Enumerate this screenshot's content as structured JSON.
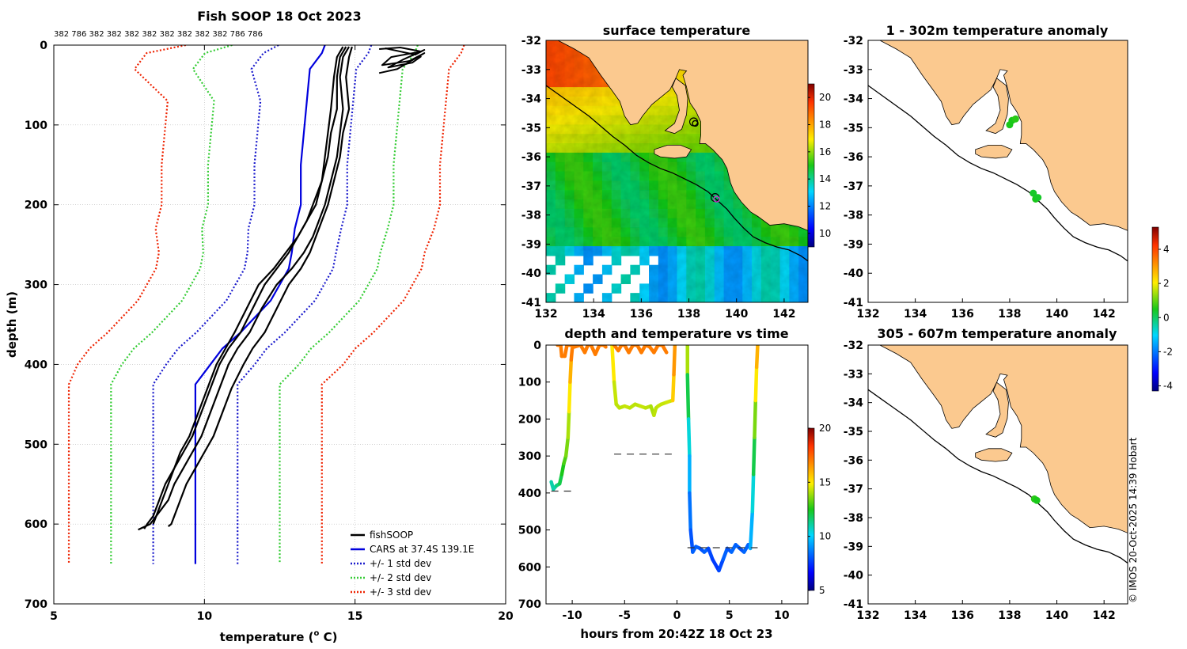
{
  "chart_data": [
    {
      "id": "profile",
      "type": "line",
      "title": "Fish SOOP 18 Oct 2023",
      "top_annotation": "382 786 382 382 382 382 382 382 382 382 786 786",
      "xlabel": "temperature (",
      "xlabel_sup": "o",
      "xlabel_end": " C)",
      "ylabel": "depth (m)",
      "xlim": [
        5,
        20
      ],
      "ylim": [
        700,
        0
      ],
      "xticks": [
        5,
        10,
        15,
        20
      ],
      "yticks": [
        0,
        100,
        200,
        300,
        400,
        500,
        600,
        700
      ],
      "grid": true,
      "legend": [
        {
          "label": "fishSOOP",
          "color": "#000000",
          "dash": "solid"
        },
        {
          "label": "CARS at 37.4S 139.1E",
          "color": "#0000dd",
          "dash": "solid"
        },
        {
          "label": "+/- 1 std dev",
          "color": "#1a1acc",
          "dash": "dot"
        },
        {
          "label": "+/- 2 std dev",
          "color": "#33cc33",
          "dash": "dot"
        },
        {
          "label": "+/- 3 std dev",
          "color": "#ee2200",
          "dash": "dot"
        }
      ],
      "cars_mean": {
        "x": [
          14.0,
          13.9,
          13.5,
          13.4,
          13.3,
          13.2,
          13.2,
          13.0,
          12.9,
          12.8,
          12.5,
          12.2,
          11.7,
          11.2,
          10.6,
          10.2,
          9.7,
          9.7,
          9.7
        ],
        "y": [
          0,
          10,
          30,
          70,
          110,
          150,
          200,
          230,
          260,
          280,
          300,
          320,
          340,
          360,
          380,
          400,
          425,
          600,
          650
        ]
      },
      "std_dev": 1.4,
      "std_dev_extra_shallow": [
        0,
        0.6,
        0.4,
        0
      ],
      "fishsoop_profiles": [
        {
          "x": [
            14.8,
            14.6,
            14.5,
            14.6,
            14.5,
            14.4,
            14.2,
            14.0,
            13.8,
            13.6,
            13.3,
            12.9,
            12.4,
            11.9,
            11.5,
            11.1,
            10.8,
            10.5,
            10.2,
            9.9,
            9.6,
            9.3,
            9.0,
            8.8,
            8.4,
            8.2,
            7.8
          ],
          "y": [
            2,
            15,
            40,
            80,
            110,
            140,
            170,
            200,
            220,
            240,
            260,
            280,
            300,
            330,
            360,
            380,
            400,
            430,
            460,
            490,
            510,
            530,
            550,
            570,
            590,
            600,
            607
          ]
        },
        {
          "x": [
            14.9,
            14.8,
            14.7,
            14.8,
            14.6,
            14.5,
            14.3,
            14.1,
            13.9,
            13.7,
            13.5,
            13.2,
            12.8,
            12.4,
            12.0,
            11.6,
            11.3,
            10.9,
            10.6,
            10.3,
            10.0,
            9.7,
            9.4,
            9.2,
            9.0,
            8.9,
            8.8
          ],
          "y": [
            2,
            15,
            40,
            80,
            110,
            140,
            170,
            200,
            220,
            240,
            260,
            280,
            300,
            330,
            360,
            380,
            400,
            430,
            460,
            490,
            510,
            530,
            550,
            570,
            590,
            600,
            603
          ]
        },
        {
          "x": [
            14.6,
            14.4,
            14.3,
            14.2,
            14.1,
            14.0,
            13.9,
            13.7,
            13.4,
            13.1,
            12.8,
            12.4,
            12.0,
            11.6,
            11.2,
            10.8,
            10.5,
            10.2,
            9.9,
            9.6,
            9.3,
            9.0,
            8.8,
            8.6,
            8.4,
            8.3
          ],
          "y": [
            2,
            15,
            40,
            80,
            110,
            140,
            170,
            200,
            220,
            240,
            260,
            280,
            300,
            330,
            360,
            380,
            400,
            430,
            460,
            490,
            510,
            530,
            550,
            570,
            590,
            600
          ]
        },
        {
          "x": [
            14.7,
            14.5,
            14.4,
            14.4,
            14.2,
            14.1,
            13.9,
            13.6,
            13.4,
            13.1,
            12.7,
            12.3,
            11.8,
            11.4,
            11.0,
            10.7,
            10.4,
            10.1,
            9.8,
            9.5,
            9.2,
            9.0,
            8.7,
            8.5,
            8.3,
            8.1,
            8.0
          ],
          "y": [
            2,
            15,
            40,
            80,
            110,
            140,
            170,
            200,
            220,
            240,
            260,
            280,
            300,
            330,
            360,
            380,
            400,
            430,
            460,
            490,
            510,
            530,
            550,
            570,
            590,
            600,
            606
          ]
        }
      ],
      "surface_squiggles": [
        {
          "x": [
            15.8,
            16.5,
            17.2,
            16.2,
            15.9,
            16.8,
            17.3,
            16.4,
            15.8
          ],
          "y": [
            5,
            3,
            8,
            15,
            25,
            20,
            10,
            30,
            35
          ]
        },
        {
          "x": [
            16.0,
            17.0,
            17.3,
            16.6,
            16.1,
            16.9,
            17.2
          ],
          "y": [
            4,
            12,
            6,
            18,
            28,
            22,
            14
          ]
        }
      ]
    },
    {
      "id": "surface_map",
      "type": "heatmap",
      "title": "surface temperature",
      "xlim": [
        132,
        143
      ],
      "ylim": [
        -41,
        -32
      ],
      "xticks": [
        132,
        134,
        136,
        138,
        140,
        142
      ],
      "yticks": [
        -32,
        -33,
        -34,
        -35,
        -36,
        -37,
        -38,
        -39,
        -40,
        -41
      ],
      "colorbar": {
        "min": 9,
        "max": 21,
        "ticks": [
          10,
          12,
          14,
          16,
          18,
          20
        ]
      },
      "ship_positions": [
        {
          "lon": 138.2,
          "lat": -34.8
        },
        {
          "lon": 139.1,
          "lat": -37.4
        }
      ]
    },
    {
      "id": "depth_time",
      "type": "scatter",
      "title": "depth and temperature vs time",
      "xlabel": "hours from 20:42Z 18 Oct 23",
      "xlim": [
        -12.5,
        12.5
      ],
      "ylim": [
        700,
        0
      ],
      "xticks": [
        -10,
        -5,
        0,
        5,
        10
      ],
      "yticks": [
        0,
        100,
        200,
        300,
        400,
        500,
        600,
        700
      ],
      "colorbar": {
        "min": 5,
        "max": 20,
        "ticks": [
          5,
          10,
          15,
          20
        ]
      },
      "segments": [
        {
          "t": [
            -12.0,
            -11.8,
            -11.5,
            -11.2,
            -11.0,
            -10.8,
            -10.6,
            -10.4,
            -10.3,
            -10.2,
            -10.1,
            -10.0
          ],
          "d": [
            370,
            390,
            380,
            375,
            350,
            320,
            300,
            250,
            180,
            100,
            40,
            10
          ],
          "temp": [
            11,
            11,
            11,
            11.5,
            12,
            12.5,
            13,
            13.5,
            14,
            15,
            16,
            17
          ]
        },
        {
          "t": [
            -11.4,
            -11.1,
            -11.0,
            -10.7,
            -10.5,
            -10.2,
            -9.8,
            -9.2,
            -8.8,
            -8.5,
            -8.2,
            -7.8,
            -7.4,
            -7.0,
            -6.8
          ],
          "d": [
            0,
            0,
            30,
            30,
            0,
            0,
            5,
            0,
            20,
            0,
            0,
            25,
            0,
            0,
            5
          ],
          "temp": [
            17,
            17,
            17,
            17,
            17,
            17,
            17,
            17,
            17,
            17,
            17,
            17,
            17,
            17,
            17
          ]
        },
        {
          "t": [
            -6.2,
            -6.0,
            -5.8,
            -5.5,
            -5.0,
            -4.5,
            -4.0,
            -3.5,
            -3.0,
            -2.5,
            -2.2,
            -2.0,
            -1.8,
            -1.5,
            -1.0,
            -0.5
          ],
          "d": [
            0,
            100,
            160,
            170,
            165,
            170,
            160,
            165,
            170,
            165,
            190,
            170,
            165,
            160,
            155,
            150
          ],
          "temp": [
            16.5,
            15,
            14.3,
            14.2,
            14.2,
            14.3,
            14.2,
            14.2,
            14.3,
            14.2,
            14.0,
            14.2,
            14.2,
            14.3,
            14.3,
            14.4
          ]
        },
        {
          "t": [
            -6.0,
            -5.6,
            -5.3,
            -5.0,
            -4.6,
            -4.2,
            -3.8,
            -3.4,
            -3.0,
            -2.6,
            -2.2,
            -1.8,
            -1.4,
            -1.0
          ],
          "d": [
            0,
            15,
            0,
            0,
            20,
            0,
            0,
            20,
            0,
            5,
            20,
            0,
            0,
            20
          ],
          "temp": [
            17,
            17,
            17,
            17,
            17,
            17,
            17,
            17,
            17,
            17,
            17,
            17,
            17,
            17
          ]
        },
        {
          "t": [
            -0.4,
            -0.3,
            -0.2
          ],
          "d": [
            150,
            80,
            0
          ],
          "temp": [
            14.5,
            15.5,
            16.5
          ]
        },
        {
          "t": [
            1.0,
            1.0,
            1.1,
            1.2,
            1.2,
            1.3,
            1.5,
            1.8,
            2.2,
            2.6,
            3.0,
            3.4,
            3.8,
            4.0,
            4.4,
            4.8,
            5.2,
            5.6,
            6.0,
            6.4,
            6.8,
            7.0,
            7.2,
            7.3,
            7.4,
            7.5,
            7.6,
            7.7
          ],
          "d": [
            0,
            80,
            200,
            300,
            400,
            500,
            560,
            545,
            550,
            560,
            550,
            580,
            600,
            610,
            580,
            550,
            560,
            540,
            550,
            560,
            540,
            550,
            450,
            350,
            250,
            150,
            60,
            0
          ],
          "temp": [
            16,
            14,
            12,
            10.5,
            9.5,
            8.5,
            8,
            8.2,
            8.2,
            8,
            8.2,
            7.8,
            7.6,
            7.5,
            7.8,
            8.2,
            8,
            8.3,
            8.2,
            8,
            8.3,
            8.2,
            9.5,
            10.5,
            12,
            13.5,
            15,
            16
          ]
        }
      ],
      "cars_bottom_markers": [
        {
          "t0": -12.0,
          "t1": -9.8,
          "d": 395
        },
        {
          "t0": -6.0,
          "t1": -0.5,
          "d": 295
        },
        {
          "t0": 1.0,
          "t1": 7.7,
          "d": 548
        }
      ]
    },
    {
      "id": "anomaly_shallow",
      "type": "scatter",
      "title": "1 - 302m temperature anomaly",
      "xlim": [
        132,
        143
      ],
      "ylim": [
        -41,
        -32
      ],
      "xticks": [
        132,
        134,
        136,
        138,
        140,
        142
      ],
      "yticks": [
        -32,
        -33,
        -34,
        -35,
        -36,
        -37,
        -38,
        -39,
        -40,
        -41
      ],
      "points": [
        {
          "lon": 138.1,
          "lat": -34.75,
          "anomaly": 0.5
        },
        {
          "lon": 138.25,
          "lat": -34.7,
          "anomaly": 0.6
        },
        {
          "lon": 138.0,
          "lat": -34.9,
          "anomaly": 0.5
        },
        {
          "lon": 139.0,
          "lat": -37.25,
          "anomaly": 0.4
        },
        {
          "lon": 139.1,
          "lat": -37.45,
          "anomaly": 0.5
        },
        {
          "lon": 139.2,
          "lat": -37.4,
          "anomaly": 0.4
        }
      ]
    },
    {
      "id": "anomaly_deep",
      "type": "scatter",
      "title": "305 - 607m temperature anomaly",
      "xlim": [
        132,
        143
      ],
      "ylim": [
        -41,
        -32
      ],
      "xticks": [
        132,
        134,
        136,
        138,
        140,
        142
      ],
      "yticks": [
        -32,
        -33,
        -34,
        -35,
        -36,
        -37,
        -38,
        -39,
        -40,
        -41
      ],
      "points": [
        {
          "lon": 139.05,
          "lat": -37.35,
          "anomaly": 0.6
        },
        {
          "lon": 139.15,
          "lat": -37.4,
          "anomaly": 0.5
        }
      ]
    }
  ],
  "anomaly_colorbar": {
    "min": -4.3,
    "max": 5.3,
    "ticks": [
      -4,
      -2,
      0,
      2,
      4
    ]
  },
  "credit": "© IMOS 20-Oct-2025 14:39 Hobart",
  "colors": {
    "land": "#fbc98f",
    "coast": "#000000",
    "grid": "#b8b8b8",
    "depth_marker": "#333333"
  }
}
